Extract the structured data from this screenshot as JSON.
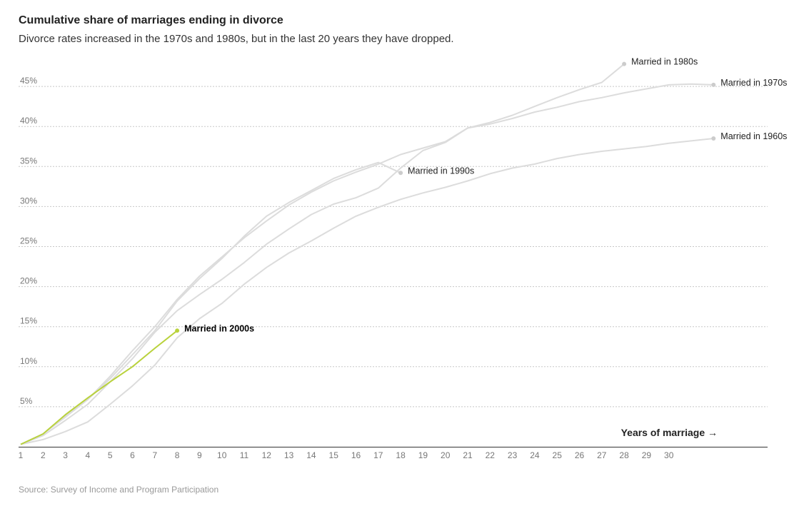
{
  "header": {
    "title": "Cumulative share of marriages ending in divorce",
    "subtitle": "Divorce rates increased in the 1970s and 1980s, but in the last 20 years they have dropped."
  },
  "footer": {
    "source": "Source: Survey of Income and Program Participation"
  },
  "colors": {
    "muted": "#dcdcdc",
    "highlight": "#b9d23c",
    "grid": "#c8c8c8",
    "axis": "#333333"
  },
  "chart_data": {
    "type": "line",
    "title": "Cumulative share of marriages ending in divorce",
    "xlabel": "Years of marriage →",
    "ylabel": "",
    "xlim": [
      1,
      33
    ],
    "ylim": [
      0,
      48
    ],
    "x_ticks": [
      1,
      2,
      3,
      4,
      5,
      6,
      7,
      8,
      9,
      10,
      11,
      12,
      13,
      14,
      15,
      16,
      17,
      18,
      19,
      20,
      21,
      22,
      23,
      24,
      25,
      26,
      27,
      28,
      29,
      30
    ],
    "y_ticks": [
      5,
      10,
      15,
      20,
      25,
      30,
      35,
      40,
      45
    ],
    "y_tick_labels": [
      "5%",
      "10%",
      "15%",
      "20%",
      "25%",
      "30%",
      "35%",
      "40%",
      "45%"
    ],
    "grid": true,
    "series": [
      {
        "name": "Married in 1960s",
        "highlight": false,
        "x": [
          1,
          2,
          3,
          4,
          5,
          6,
          7,
          8,
          9,
          10,
          11,
          12,
          13,
          14,
          15,
          16,
          17,
          18,
          19,
          20,
          21,
          22,
          23,
          24,
          25,
          26,
          27,
          28,
          29,
          30,
          31,
          32
        ],
        "y": [
          0.3,
          0.9,
          1.9,
          3.1,
          5.3,
          7.6,
          10.2,
          13.6,
          16.0,
          17.9,
          20.3,
          22.4,
          24.2,
          25.7,
          27.3,
          28.8,
          29.9,
          30.9,
          31.7,
          32.4,
          33.2,
          34.1,
          34.8,
          35.3,
          36.0,
          36.5,
          36.9,
          37.2,
          37.5,
          37.9,
          38.2,
          38.5
        ]
      },
      {
        "name": "Married in 1970s",
        "highlight": false,
        "x": [
          1,
          2,
          3,
          4,
          5,
          6,
          7,
          8,
          9,
          10,
          11,
          12,
          13,
          14,
          15,
          16,
          17,
          18,
          19,
          20,
          21,
          22,
          23,
          24,
          25,
          26,
          27,
          28,
          29,
          30,
          31,
          32
        ],
        "y": [
          0.3,
          1.4,
          3.3,
          5.3,
          8.1,
          11.0,
          14.3,
          17.0,
          19.0,
          20.9,
          23.0,
          25.3,
          27.2,
          29.0,
          30.3,
          31.1,
          32.3,
          34.8,
          37.0,
          38.0,
          39.8,
          40.3,
          41.0,
          41.8,
          42.4,
          43.1,
          43.6,
          44.2,
          44.7,
          45.2,
          45.3,
          45.2
        ]
      },
      {
        "name": "Married in 1980s",
        "highlight": false,
        "x": [
          1,
          2,
          3,
          4,
          5,
          6,
          7,
          8,
          9,
          10,
          11,
          12,
          13,
          14,
          15,
          16,
          17,
          18,
          19,
          20,
          21,
          22,
          23,
          24,
          25,
          26,
          27,
          28
        ],
        "y": [
          0.3,
          1.6,
          3.9,
          5.9,
          8.8,
          12.0,
          15.0,
          18.4,
          21.3,
          23.7,
          26.1,
          28.2,
          30.2,
          31.8,
          33.2,
          34.3,
          35.3,
          36.5,
          37.3,
          38.1,
          39.8,
          40.5,
          41.4,
          42.5,
          43.6,
          44.6,
          45.5,
          47.8
        ]
      },
      {
        "name": "Married in 1990s",
        "highlight": false,
        "x": [
          1,
          2,
          3,
          4,
          5,
          6,
          7,
          8,
          9,
          10,
          11,
          12,
          13,
          14,
          15,
          16,
          17,
          18
        ],
        "y": [
          0.3,
          1.6,
          3.7,
          5.9,
          8.5,
          11.5,
          14.5,
          18.2,
          21.0,
          23.5,
          26.3,
          28.8,
          30.5,
          32.0,
          33.5,
          34.6,
          35.5,
          34.2
        ]
      },
      {
        "name": "Married in 2000s",
        "highlight": true,
        "x": [
          1,
          2,
          3,
          4,
          5,
          6,
          7,
          8
        ],
        "y": [
          0.3,
          1.6,
          4.0,
          6.1,
          8.1,
          10.0,
          12.3,
          14.5
        ]
      }
    ]
  }
}
